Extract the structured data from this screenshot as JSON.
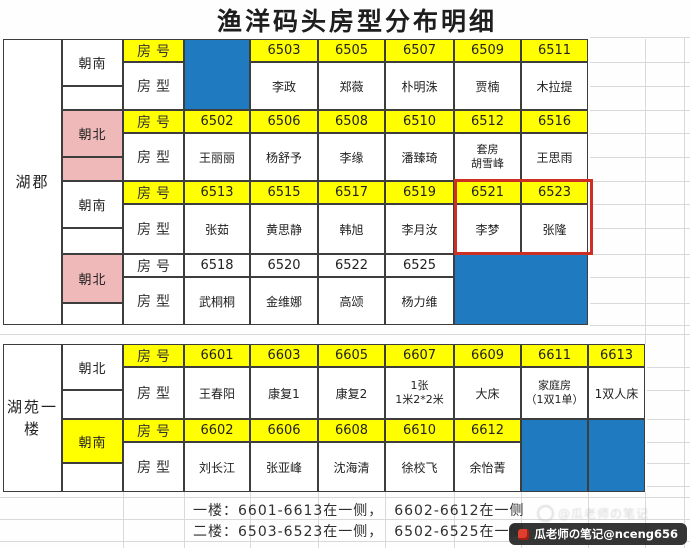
{
  "title": "渔洋码头房型分布明细",
  "row_labels": {
    "number": "房号",
    "type": "房型"
  },
  "colors": {
    "yellow": "#ffff00",
    "blue": "#1f7ac0",
    "pink": "#f0b9b9",
    "white": "#ffffff",
    "highlight_red": "#cd2f25"
  },
  "buildings": [
    {
      "name": "湖郡",
      "blocks": [
        {
          "direction": "朝南",
          "direction_color": "white",
          "direction_filler_color": "white",
          "number_row_color": "yellow",
          "columns": [
            {
              "merged_blue": true,
              "span": 1
            },
            {
              "number": "6503",
              "occupant": "李政"
            },
            {
              "number": "6505",
              "occupant": "郑薇"
            },
            {
              "number": "6507",
              "occupant": "朴明洙"
            },
            {
              "number": "6509",
              "occupant": "贾楠"
            },
            {
              "number": "6511",
              "occupant": "木拉提"
            }
          ]
        },
        {
          "direction": "朝北",
          "direction_color": "pink",
          "direction_filler_color": "pink",
          "number_row_color": "yellow",
          "columns": [
            {
              "number": "6502",
              "occupant": "王丽丽"
            },
            {
              "number": "6506",
              "occupant": "杨舒予"
            },
            {
              "number": "6508",
              "occupant": "李缘"
            },
            {
              "number": "6510",
              "occupant": "潘臻琦"
            },
            {
              "number": "6512",
              "occupant": "套房\n胡雪峰"
            },
            {
              "number": "6516",
              "occupant": "王思雨"
            }
          ]
        },
        {
          "direction": "朝南",
          "direction_color": "white",
          "direction_filler_color": "white",
          "number_row_color": "yellow",
          "columns": [
            {
              "number": "6513",
              "occupant": "张茹"
            },
            {
              "number": "6515",
              "occupant": "黄思静"
            },
            {
              "number": "6517",
              "occupant": "韩旭"
            },
            {
              "number": "6519",
              "occupant": "李月汝"
            },
            {
              "number": "6521",
              "occupant": "李梦"
            },
            {
              "number": "6523",
              "occupant": "张隆"
            }
          ]
        },
        {
          "direction": "朝北",
          "direction_color": "pink",
          "direction_filler_color": "white",
          "number_row_color": "white",
          "columns": [
            {
              "number": "6518",
              "occupant": "武桐桐"
            },
            {
              "number": "6520",
              "occupant": "金维娜"
            },
            {
              "number": "6522",
              "occupant": "高颂"
            },
            {
              "number": "6525",
              "occupant": "杨力维"
            },
            {
              "merged_blue": true,
              "span": 2
            }
          ]
        }
      ]
    },
    {
      "name": "湖苑一楼",
      "blocks": [
        {
          "direction": "朝北",
          "direction_color": "white",
          "direction_filler_color": "white",
          "number_row_color": "yellow",
          "columns": [
            {
              "number": "6601",
              "occupant": "王春阳"
            },
            {
              "number": "6603",
              "occupant": "康复1"
            },
            {
              "number": "6605",
              "occupant": "康复2"
            },
            {
              "number": "6607",
              "occupant": "1张\n1米2*2米"
            },
            {
              "number": "6609",
              "occupant": "大床"
            },
            {
              "number": "6611",
              "occupant": "家庭房\n（1双1单）"
            },
            {
              "number": "6613",
              "occupant": "1双人床"
            }
          ]
        },
        {
          "direction": "朝南",
          "direction_color": "yellow",
          "direction_filler_color": "white",
          "number_row_color": "yellow",
          "columns": [
            {
              "number": "6602",
              "occupant": "刘长江"
            },
            {
              "number": "6606",
              "occupant": "张亚峰"
            },
            {
              "number": "6608",
              "occupant": "沈海清"
            },
            {
              "number": "6610",
              "occupant": "徐校飞"
            },
            {
              "number": "6612",
              "occupant": "余怡菁"
            },
            {
              "merged_blue": true,
              "span": 1
            },
            {
              "merged_blue": true,
              "span": 1
            }
          ]
        }
      ]
    }
  ],
  "highlight_box": {
    "rooms": [
      "6521",
      "6523"
    ]
  },
  "footer_notes": [
    "一楼：6601-6613在一侧，  6602-6612在一侧",
    "二楼：6503-6523在一侧，  6502-6525在一侧"
  ],
  "watermarks": {
    "faint_text": "@瓜老师の笔记",
    "badge_text": "瓜老师の笔记@nceng656"
  }
}
